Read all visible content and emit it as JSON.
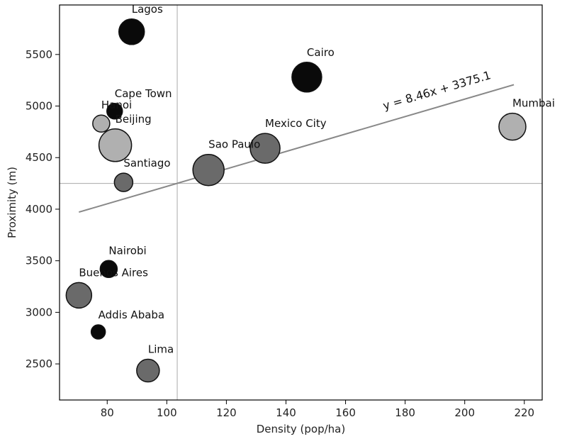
{
  "chart_data": {
    "type": "scatter",
    "title": "",
    "xlabel": "Density (pop/ha)",
    "ylabel": "Proximity (m)",
    "xlim": [
      64,
      226
    ],
    "ylim": [
      2150,
      5980
    ],
    "x_ticks": [
      80,
      100,
      120,
      140,
      160,
      180,
      200,
      220
    ],
    "y_ticks": [
      2500,
      3000,
      3500,
      4000,
      4500,
      5000,
      5500
    ],
    "grid": false,
    "mean_lines": {
      "x": 103.5,
      "y": 4250
    },
    "trendline": {
      "label": "y = 8.46x + 3375.1",
      "slope": 8.46,
      "intercept": 3375.1,
      "x_range": [
        70.5,
        216.5
      ],
      "color": "#888888"
    },
    "points": [
      {
        "name": "Lagos",
        "x": 88.2,
        "y": 5720,
        "size": 18,
        "color": "#0a0a0a"
      },
      {
        "name": "Cairo",
        "x": 147.0,
        "y": 5280,
        "size": 21,
        "color": "#0a0a0a"
      },
      {
        "name": "Cape Town",
        "x": 82.5,
        "y": 4950,
        "size": 11,
        "color": "#0a0a0a"
      },
      {
        "name": "Hanoi",
        "x": 78.0,
        "y": 4830,
        "size": 12,
        "color": "#b0b0b0"
      },
      {
        "name": "Beijing",
        "x": 82.7,
        "y": 4620,
        "size": 23,
        "color": "#b0b0b0"
      },
      {
        "name": "Mumbai",
        "x": 216.0,
        "y": 4800,
        "size": 19,
        "color": "#b0b0b0"
      },
      {
        "name": "Mexico City",
        "x": 133.0,
        "y": 4590,
        "size": 21,
        "color": "#6a6a6a"
      },
      {
        "name": "Sao Paulo",
        "x": 114.0,
        "y": 4380,
        "size": 22,
        "color": "#6a6a6a"
      },
      {
        "name": "Santiago",
        "x": 85.5,
        "y": 4260,
        "size": 13,
        "color": "#6a6a6a"
      },
      {
        "name": "Nairobi",
        "x": 80.5,
        "y": 3420,
        "size": 12,
        "color": "#0a0a0a"
      },
      {
        "name": "Buenos Aires",
        "x": 70.5,
        "y": 3165,
        "size": 18,
        "color": "#6a6a6a"
      },
      {
        "name": "Addis Ababa",
        "x": 77.0,
        "y": 2810,
        "size": 10,
        "color": "#0a0a0a"
      },
      {
        "name": "Lima",
        "x": 93.7,
        "y": 2435,
        "size": 16,
        "color": "#6a6a6a"
      }
    ]
  }
}
